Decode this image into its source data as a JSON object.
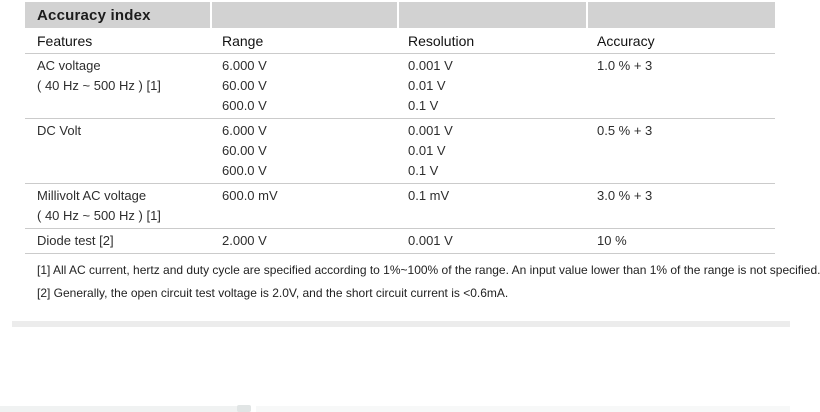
{
  "table": {
    "title": "Accuracy index",
    "columns": [
      "Features",
      "Range",
      "Resolution",
      "Accuracy"
    ],
    "sections": [
      {
        "feature": [
          "AC voltage",
          "( 40 Hz ~ 500 Hz ) [1]"
        ],
        "ranges": [
          "6.000 V",
          "60.00 V",
          "600.0 V"
        ],
        "resolutions": [
          "0.001 V",
          "0.01 V",
          "0.1 V"
        ],
        "accuracy": "1.0 % + 3"
      },
      {
        "feature": [
          "DC Volt"
        ],
        "ranges": [
          "6.000 V",
          "60.00 V",
          "600.0 V"
        ],
        "resolutions": [
          "0.001 V",
          "0.01 V",
          "0.1 V"
        ],
        "accuracy": "0.5 % + 3"
      },
      {
        "feature": [
          "Millivolt AC voltage",
          "( 40 Hz ~ 500 Hz ) [1]"
        ],
        "ranges": [
          "600.0 mV"
        ],
        "resolutions": [
          "0.1 mV"
        ],
        "accuracy": "3.0 % + 3"
      },
      {
        "feature": [
          "Diode test [2]"
        ],
        "ranges": [
          "2.000 V"
        ],
        "resolutions": [
          "0.001 V"
        ],
        "accuracy": "10 %"
      }
    ],
    "footnotes": [
      "[1] All AC current, hertz and duty cycle are specified according to 1%~100% of the range. An input value lower than 1% of the range is not specified.",
      "[2] Generally, the open circuit test voltage is 2.0V, and the short circuit current is <0.6mA."
    ]
  },
  "colors": {
    "title_band": "#d2d2d2",
    "divider_line": "#cbcbcb",
    "separator_band": "#ececec",
    "text": "#2d2d2d"
  }
}
